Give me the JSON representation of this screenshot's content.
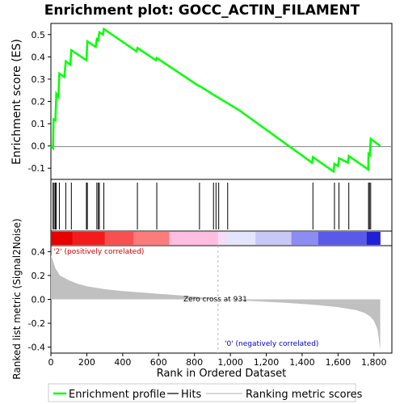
{
  "chart_data": {
    "type": "line",
    "title": "Enrichment plot: GOCC_ACTIN_FILAMENT",
    "xlabel": "Rank in Ordered Dataset",
    "xlim": [
      0,
      1900
    ],
    "x_ticks": [
      0,
      200,
      400,
      600,
      800,
      1000,
      1200,
      1400,
      1600,
      1800
    ],
    "x_tick_labels": [
      "0",
      "200",
      "400",
      "600",
      "800",
      "1,000",
      "1,200",
      "1,400",
      "1,600",
      "1,800"
    ],
    "es_panel": {
      "ylabel": "Enrichment score (ES)",
      "ylim": [
        -0.15,
        0.55
      ],
      "y_ticks": [
        -0.1,
        0.0,
        0.1,
        0.2,
        0.3,
        0.4,
        0.5
      ],
      "y_tick_labels": [
        "-0.1",
        "0.0",
        "0.1",
        "0.2",
        "0.3",
        "0.4",
        "0.5"
      ],
      "line_color": "#00ff00",
      "x": [
        0,
        12,
        15,
        25,
        30,
        42,
        47,
        75,
        83,
        108,
        114,
        198,
        203,
        250,
        256,
        264,
        270,
        290,
        295,
        477,
        482,
        585,
        590,
        823,
        828,
        906,
        1050,
        1455,
        1460,
        1575,
        1580,
        1600,
        1605,
        1655,
        1660,
        1768,
        1770,
        1777,
        1782,
        1835
      ],
      "y": [
        0.0,
        -0.01,
        0.12,
        0.115,
        0.235,
        0.22,
        0.325,
        0.31,
        0.38,
        0.365,
        0.43,
        0.385,
        0.47,
        0.445,
        0.48,
        0.475,
        0.51,
        0.5,
        0.525,
        0.425,
        0.44,
        0.385,
        0.395,
        0.27,
        0.27,
        0.23,
        0.16,
        -0.075,
        -0.05,
        -0.115,
        -0.08,
        -0.09,
        -0.055,
        -0.075,
        -0.045,
        -0.105,
        -0.035,
        -0.04,
        0.032,
        0.0
      ]
    },
    "hits": [
      12,
      18,
      25,
      30,
      47,
      83,
      114,
      198,
      203,
      256,
      264,
      270,
      295,
      482,
      590,
      828,
      906,
      920,
      935,
      985,
      1460,
      1580,
      1605,
      1660,
      1770,
      1775,
      1782
    ],
    "ranked_metric": {
      "ylabel": "Ranked list metric (Signal2Noise)",
      "ylim": [
        -0.45,
        0.45
      ],
      "y_ticks": [
        -0.4,
        -0.2,
        0.0,
        0.2,
        0.4
      ],
      "y_tick_labels": [
        "-0.4",
        "-0.2",
        "0.0",
        "0.2",
        "0.4"
      ],
      "fill_color": "#c0c0c0",
      "rank": [
        0,
        10,
        25,
        50,
        100,
        150,
        200,
        300,
        400,
        500,
        600,
        700,
        800,
        900,
        931,
        1000,
        1100,
        1200,
        1300,
        1400,
        1500,
        1600,
        1700,
        1750,
        1780,
        1800,
        1820,
        1835
      ],
      "value": [
        0.37,
        0.33,
        0.26,
        0.2,
        0.16,
        0.13,
        0.11,
        0.085,
        0.07,
        0.058,
        0.047,
        0.036,
        0.024,
        0.008,
        0.0,
        -0.004,
        -0.012,
        -0.02,
        -0.028,
        -0.038,
        -0.05,
        -0.065,
        -0.09,
        -0.115,
        -0.145,
        -0.18,
        -0.25,
        -0.42
      ]
    },
    "zero_cross_rank": 931,
    "annotations": {
      "positive": "'2' (positively correlated)",
      "negative": "'0' (negatively correlated)",
      "zero_cross": "Zero cross at 931"
    },
    "legend": {
      "placement": "bottom",
      "entries": [
        {
          "label": "Enrichment profile",
          "color": "#00ff00"
        },
        {
          "label": "Hits",
          "color": "#000000"
        },
        {
          "label": "Ranking metric scores",
          "color": "#c0c0c0"
        }
      ]
    },
    "colorbar": {
      "stops": [
        {
          "rank": 0,
          "color": "#e60000"
        },
        {
          "rank": 120,
          "color": "#f21c1c"
        },
        {
          "rank": 300,
          "color": "#f85050"
        },
        {
          "rank": 460,
          "color": "#fc7b7b"
        },
        {
          "rank": 660,
          "color": "#ffbde0"
        },
        {
          "rank": 931,
          "color": "#f4dcf4"
        },
        {
          "rank": 980,
          "color": "#e4e4fa"
        },
        {
          "rank": 1140,
          "color": "#c8c8f6"
        },
        {
          "rank": 1340,
          "color": "#8c8cf2"
        },
        {
          "rank": 1490,
          "color": "#5a5ae8"
        },
        {
          "rank": 1760,
          "color": "#2020d4"
        },
        {
          "rank": 1835,
          "color": "#1010c8"
        }
      ]
    }
  }
}
